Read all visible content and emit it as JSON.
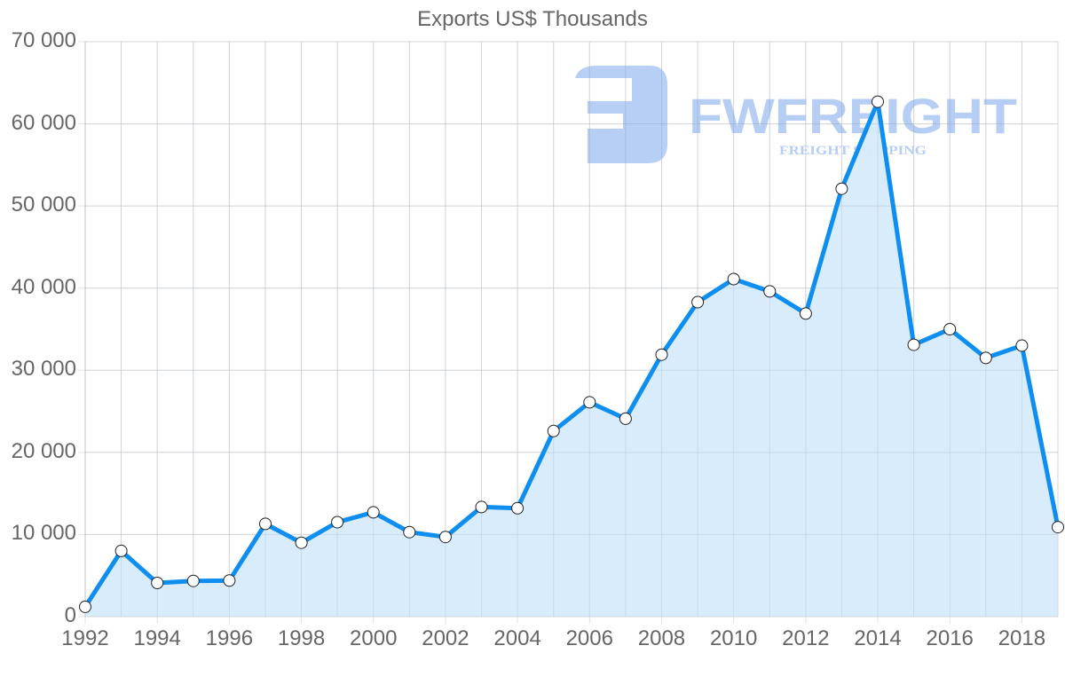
{
  "chart_data": {
    "type": "line",
    "title": "Exports US$ Thousands",
    "xlabel": "",
    "ylabel": "",
    "ylim": [
      0,
      70000
    ],
    "xlim": [
      1992,
      2019
    ],
    "grid": true,
    "filled_area": true,
    "legend": null,
    "y_ticks": [
      "0",
      "10 000",
      "20 000",
      "30 000",
      "40 000",
      "50 000",
      "60 000",
      "70 000"
    ],
    "x_ticks": [
      "1992",
      "1994",
      "1996",
      "1998",
      "2000",
      "2002",
      "2004",
      "2006",
      "2008",
      "2010",
      "2012",
      "2014",
      "2016",
      "2018"
    ],
    "x": [
      1992,
      1993,
      1994,
      1995,
      1996,
      1997,
      1998,
      1999,
      2000,
      2001,
      2002,
      2003,
      2004,
      2005,
      2006,
      2007,
      2008,
      2009,
      2010,
      2011,
      2012,
      2013,
      2014,
      2015,
      2016,
      2017,
      2018,
      2019
    ],
    "series": [
      {
        "name": "Exports US$ Thousands",
        "color": "#0e8ef0",
        "fill": "#d7ebfc",
        "values": [
          1200,
          8000,
          4100,
          4350,
          4400,
          11300,
          9000,
          11500,
          12700,
          10300,
          9700,
          13350,
          13200,
          22600,
          26100,
          24100,
          31900,
          38300,
          41100,
          39600,
          36900,
          52100,
          62700,
          33100,
          35000,
          31500,
          33000,
          10900
        ]
      }
    ]
  },
  "watermark": {
    "brand": "FWFREIGHT",
    "tagline": "FREIGHT SHIPPING",
    "color": "#7da7ec"
  },
  "colors": {
    "line": "#0e8ef0",
    "fill": "#d7ebfc",
    "grid": "#e3e3e3",
    "axis_text": "#666666",
    "marker_fill": "#ffffff",
    "marker_stroke": "#222222"
  }
}
